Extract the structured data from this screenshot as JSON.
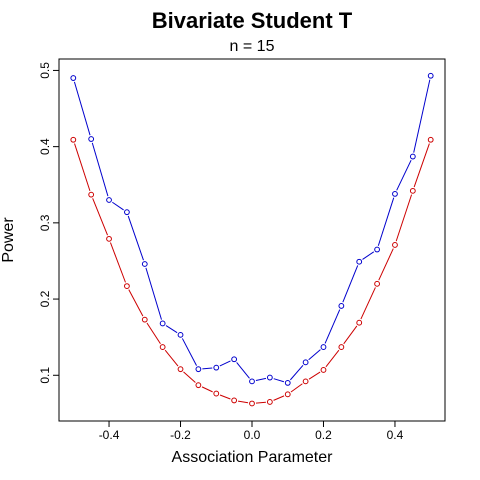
{
  "chart_data": {
    "type": "line",
    "title": "Bivariate Student T",
    "subtitle": "n = 15",
    "xlabel": "Association Parameter",
    "ylabel": "Power",
    "xlim": [
      -0.54,
      0.54
    ],
    "ylim": [
      0.04,
      0.515
    ],
    "xticks": [
      -0.4,
      -0.2,
      0.0,
      0.2,
      0.4
    ],
    "xtick_labels": [
      "-0.4",
      "-0.2",
      "0.0",
      "0.2",
      "0.4"
    ],
    "yticks": [
      0.1,
      0.2,
      0.3,
      0.4,
      0.5
    ],
    "ytick_labels": [
      "0.1",
      "0.2",
      "0.3",
      "0.4",
      "0.5"
    ],
    "grid": false,
    "legend": "none",
    "x": [
      -0.5,
      -0.45,
      -0.4,
      -0.35,
      -0.3,
      -0.25,
      -0.2,
      -0.15,
      -0.1,
      -0.05,
      0.0,
      0.05,
      0.1,
      0.15,
      0.2,
      0.25,
      0.3,
      0.35,
      0.4,
      0.45,
      0.5
    ],
    "series": [
      {
        "color": "#0000CD",
        "values": [
          0.49,
          0.41,
          0.33,
          0.314,
          0.246,
          0.168,
          0.153,
          0.108,
          0.11,
          0.121,
          0.092,
          0.097,
          0.09,
          0.117,
          0.137,
          0.191,
          0.249,
          0.265,
          0.338,
          0.387,
          0.493
        ]
      },
      {
        "color": "#CD0000",
        "values": [
          0.409,
          0.337,
          0.279,
          0.217,
          0.173,
          0.137,
          0.108,
          0.087,
          0.076,
          0.067,
          0.063,
          0.065,
          0.075,
          0.092,
          0.107,
          0.137,
          0.169,
          0.22,
          0.271,
          0.342,
          0.409
        ]
      }
    ]
  }
}
